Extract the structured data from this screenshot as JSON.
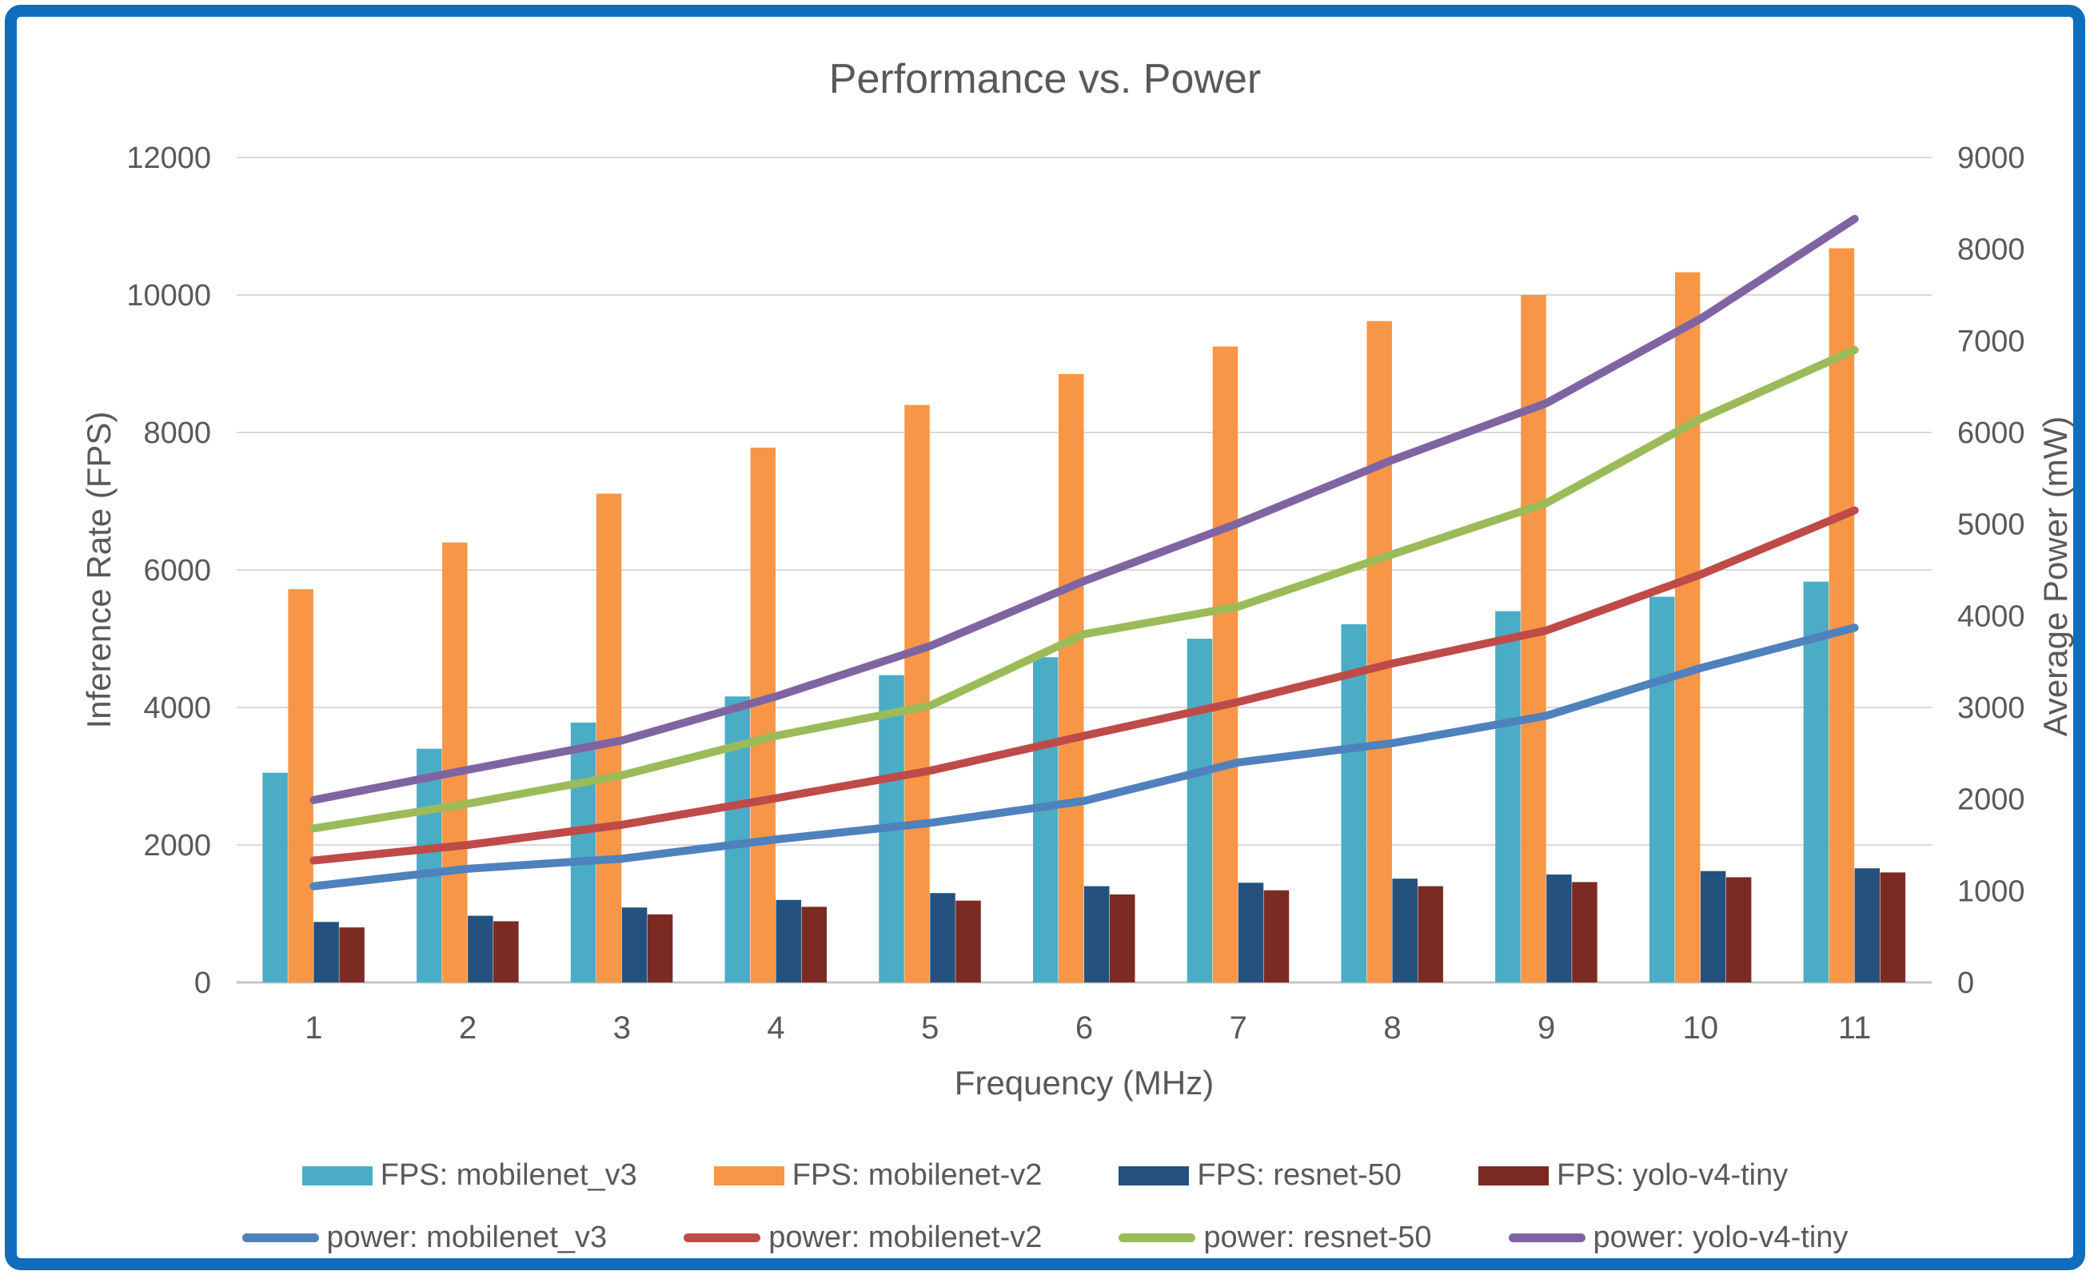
{
  "title": "Performance vs. Power",
  "axes": {
    "x_title": "Frequency (MHz)",
    "y_left_title": "Inference Rate (FPS)",
    "y_right_title": "Average Power (mW)",
    "y_left_ticks": [
      "0",
      "2000",
      "4000",
      "6000",
      "8000",
      "10000",
      "12000"
    ],
    "y_right_ticks": [
      "0",
      "1000",
      "2000",
      "3000",
      "4000",
      "5000",
      "6000",
      "7000",
      "8000",
      "9000"
    ],
    "x_ticks": [
      "1",
      "2",
      "3",
      "4",
      "5",
      "6",
      "7",
      "8",
      "9",
      "10",
      "11"
    ]
  },
  "colors": {
    "fps_mobilenet_v3": "#4BACC6",
    "fps_mobilenet_v2": "#F79646",
    "fps_resnet_50": "#24517D",
    "fps_yolo_v4_tiny": "#7B2B23",
    "power_mobilenet_v3": "#4F81BD",
    "power_mobilenet_v2": "#BE4B48",
    "power_resnet_50": "#9BBB59",
    "power_yolo_v4_tiny": "#8064A2",
    "gridline": "#D9D9D9",
    "axis_line": "#C6C6C6",
    "text": "#595959",
    "frame_border": "#0E6EBD"
  },
  "legend": {
    "rows": [
      {
        "type": "bar",
        "items": [
          {
            "label": "FPS: mobilenet_v3",
            "color": "#4BACC6"
          },
          {
            "label": "FPS: mobilenet-v2",
            "color": "#F79646"
          },
          {
            "label": "FPS: resnet-50",
            "color": "#24517D"
          },
          {
            "label": "FPS: yolo-v4-tiny",
            "color": "#7B2B23"
          }
        ]
      },
      {
        "type": "line",
        "items": [
          {
            "label": "power: mobilenet_v3",
            "color": "#4F81BD"
          },
          {
            "label": "power: mobilenet-v2",
            "color": "#BE4B48"
          },
          {
            "label": "power: resnet-50",
            "color": "#9BBB59"
          },
          {
            "label": "power: yolo-v4-tiny",
            "color": "#8064A2"
          }
        ]
      }
    ]
  },
  "chart_data": {
    "type": "bar+line combo (dual axis)",
    "title": "Performance vs. Power",
    "xlabel": "Frequency (MHz)",
    "x": [
      1,
      2,
      3,
      4,
      5,
      6,
      7,
      8,
      9,
      10,
      11
    ],
    "y_left": {
      "label": "Inference Rate (FPS)",
      "min": 0,
      "max": 12000,
      "step": 2000
    },
    "y_right": {
      "label": "Average Power (mW)",
      "min": 0,
      "max": 9000,
      "step": 1000
    },
    "grid": "horizontal only",
    "legend_position": "bottom, two rows",
    "bar_series": [
      {
        "name": "FPS: mobilenet_v3",
        "axis": "left",
        "color": "#4BACC6",
        "values": [
          3050,
          3400,
          3780,
          4160,
          4470,
          4730,
          5000,
          5210,
          5400,
          5610,
          5830
        ]
      },
      {
        "name": "FPS: mobilenet-v2",
        "axis": "left",
        "color": "#F79646",
        "values": [
          5720,
          6400,
          7110,
          7780,
          8400,
          8850,
          9250,
          9620,
          10000,
          10330,
          10680
        ]
      },
      {
        "name": "FPS: resnet-50",
        "axis": "left",
        "color": "#24517D",
        "values": [
          880,
          970,
          1090,
          1200,
          1300,
          1400,
          1450,
          1510,
          1570,
          1620,
          1660
        ]
      },
      {
        "name": "FPS: yolo-v4-tiny",
        "axis": "left",
        "color": "#7B2B23",
        "values": [
          800,
          890,
          990,
          1100,
          1190,
          1280,
          1340,
          1400,
          1460,
          1530,
          1600
        ]
      }
    ],
    "line_series": [
      {
        "name": "power: mobilenet_v3",
        "axis": "right",
        "color": "#4F81BD",
        "values": [
          1050,
          1240,
          1350,
          1560,
          1740,
          1980,
          2400,
          2610,
          2910,
          3430,
          3870
        ]
      },
      {
        "name": "power: mobilenet-v2",
        "axis": "right",
        "color": "#BE4B48",
        "values": [
          1330,
          1500,
          1720,
          2010,
          2310,
          2690,
          3060,
          3480,
          3840,
          4450,
          5150
        ]
      },
      {
        "name": "power: resnet-50",
        "axis": "right",
        "color": "#9BBB59",
        "values": [
          1680,
          1950,
          2260,
          2690,
          3020,
          3800,
          4100,
          4670,
          5230,
          6150,
          6900
        ]
      },
      {
        "name": "power: yolo-v4-tiny",
        "axis": "right",
        "color": "#8064A2",
        "values": [
          1990,
          2320,
          2640,
          3120,
          3670,
          4380,
          5010,
          5700,
          6320,
          7240,
          8330
        ]
      }
    ]
  }
}
